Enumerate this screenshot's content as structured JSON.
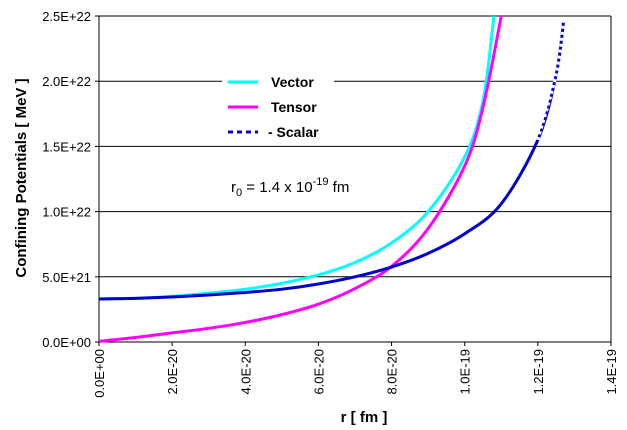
{
  "chart_data": {
    "type": "line",
    "title": "",
    "xlabel": "r [ fm ]",
    "ylabel": "Confining Potentials [ MeV ]",
    "xlim": [
      0,
      1.4e-19
    ],
    "ylim": [
      0,
      2.5e+22
    ],
    "x_ticks": [
      0,
      2e-20,
      4e-20,
      6e-20,
      8e-20,
      1e-19,
      1.2e-19,
      1.4e-19
    ],
    "x_tick_labels": [
      "0.0E+00",
      "2.0E-20",
      "4.0E-20",
      "6.0E-20",
      "8.0E-20",
      "1.0E-19",
      "1.2E-19",
      "1.4E-19"
    ],
    "y_ticks": [
      0,
      5e+21,
      1e+22,
      1.5e+22,
      2e+22,
      2.5e+22
    ],
    "y_tick_labels": [
      "0.0E+00",
      "5.0E+21",
      "1.0E+22",
      "1.5E+22",
      "2.0E+22",
      "2.5E+22"
    ],
    "grid": "horizontal",
    "legend_position": "upper-left-center",
    "annotation": {
      "prefix": "r",
      "subscript": "0",
      "middle": " = 1.4 x 10",
      "superscript": "-19",
      "suffix": " fm"
    },
    "series": [
      {
        "name": "Vector",
        "legend_label": "Vector",
        "color": "#00ffff",
        "style": "solid",
        "x": [
          0,
          1e-20,
          2e-20,
          3e-20,
          4e-20,
          5e-20,
          6e-20,
          7e-20,
          8e-20,
          9e-20,
          1e-19,
          1.05e-19,
          1.08e-19
        ],
        "y": [
          3.3e+21,
          3.35e+21,
          3.5e+21,
          3.75e+21,
          4.05e+21,
          4.5e+21,
          5.15e+21,
          6.1e+21,
          7.6e+21,
          1e+22,
          1.42e+22,
          1.85e+22,
          2.5e+22
        ]
      },
      {
        "name": "Tensor",
        "legend_label": "Tensor",
        "color": "#ff00ff",
        "style": "solid",
        "x": [
          0,
          1e-20,
          2e-20,
          3e-20,
          4e-20,
          5e-20,
          6e-20,
          7e-20,
          8e-20,
          9e-20,
          1e-19,
          1.05e-19,
          1.1e-19
        ],
        "y": [
          5e+19,
          3.5e+20,
          7e+20,
          1.05e+21,
          1.5e+21,
          2.1e+21,
          2.9e+21,
          4.1e+21,
          5.8e+21,
          8.7e+21,
          1.35e+22,
          1.8e+22,
          2.5e+22
        ]
      },
      {
        "name": "Scalar",
        "legend_label": "- Scalar",
        "color": "#0000cc",
        "style": "dashed",
        "x": [
          0,
          1e-20,
          2e-20,
          3e-20,
          4e-20,
          5e-20,
          6e-20,
          7e-20,
          8e-20,
          9e-20,
          1e-19,
          1.1e-19,
          1.2e-19,
          1.25e-19,
          1.27e-19
        ],
        "y": [
          3.3e+21,
          3.35e+21,
          3.45e+21,
          3.6e+21,
          3.8e+21,
          4.05e+21,
          4.45e+21,
          5e+21,
          5.75e+21,
          6.8e+21,
          8.3e+21,
          1.06e+22,
          1.55e+22,
          2.05e+22,
          2.45e+22
        ]
      }
    ]
  }
}
